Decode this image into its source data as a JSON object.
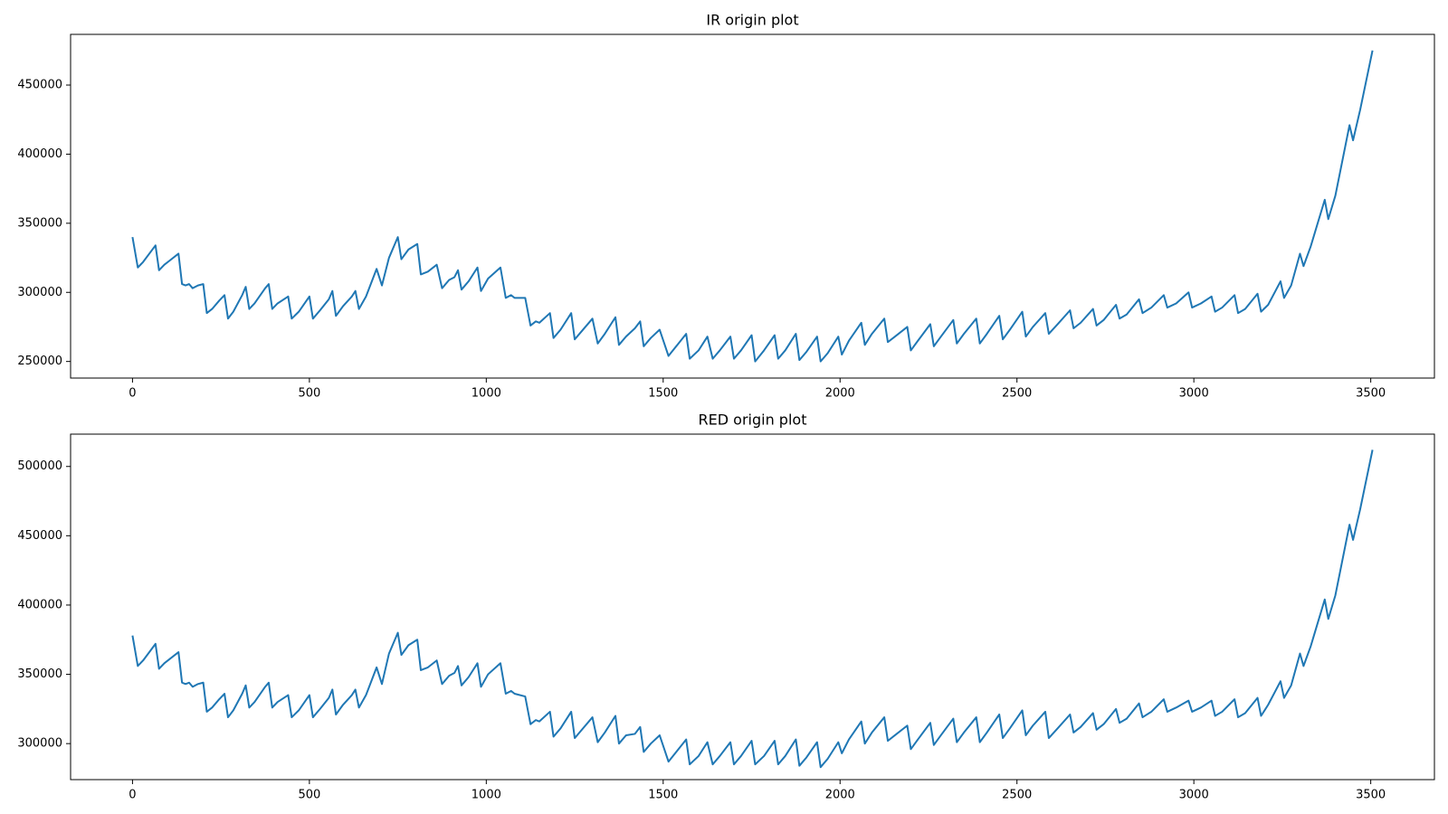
{
  "chart_data": [
    {
      "type": "line",
      "title": "IR origin plot",
      "color": "#1f77b4",
      "x": [
        0,
        15,
        30,
        65,
        75,
        90,
        105,
        130,
        140,
        150,
        160,
        170,
        185,
        200,
        210,
        225,
        245,
        260,
        270,
        285,
        310,
        320,
        330,
        345,
        375,
        385,
        395,
        410,
        440,
        450,
        470,
        500,
        510,
        530,
        555,
        565,
        575,
        595,
        620,
        630,
        640,
        660,
        690,
        705,
        725,
        750,
        760,
        780,
        805,
        815,
        835,
        860,
        875,
        895,
        910,
        920,
        930,
        950,
        975,
        985,
        1005,
        1040,
        1055,
        1070,
        1080,
        1110,
        1125,
        1140,
        1150,
        1180,
        1190,
        1210,
        1240,
        1250,
        1270,
        1300,
        1315,
        1335,
        1365,
        1375,
        1395,
        1420,
        1435,
        1445,
        1465,
        1490,
        1515,
        1540,
        1565,
        1575,
        1600,
        1625,
        1640,
        1660,
        1690,
        1700,
        1720,
        1750,
        1760,
        1785,
        1815,
        1825,
        1845,
        1875,
        1885,
        1905,
        1935,
        1945,
        1965,
        1995,
        2005,
        2025,
        2060,
        2070,
        2090,
        2125,
        2135,
        2155,
        2190,
        2200,
        2220,
        2255,
        2265,
        2285,
        2320,
        2330,
        2350,
        2385,
        2395,
        2415,
        2450,
        2460,
        2480,
        2515,
        2525,
        2545,
        2580,
        2590,
        2615,
        2650,
        2660,
        2680,
        2715,
        2725,
        2745,
        2780,
        2790,
        2810,
        2845,
        2855,
        2880,
        2915,
        2925,
        2950,
        2985,
        2995,
        3020,
        3050,
        3060,
        3080,
        3115,
        3125,
        3145,
        3180,
        3190,
        3210,
        3245,
        3255,
        3275,
        3300,
        3310,
        3330,
        3370,
        3380,
        3400,
        3440,
        3450,
        3470,
        3505
      ],
      "values": [
        340000,
        318000,
        322000,
        334000,
        316000,
        320000,
        323000,
        328000,
        306000,
        305000,
        306000,
        303000,
        305000,
        306000,
        285000,
        288000,
        294000,
        298000,
        281000,
        286000,
        298000,
        304000,
        288000,
        292000,
        303000,
        306000,
        288000,
        292000,
        297000,
        281000,
        286000,
        297000,
        281000,
        287000,
        295000,
        301000,
        283000,
        290000,
        297000,
        301000,
        288000,
        297000,
        317000,
        305000,
        325000,
        340000,
        324000,
        331000,
        335000,
        313000,
        315000,
        320000,
        303000,
        309000,
        311000,
        316000,
        302000,
        308000,
        318000,
        301000,
        310000,
        318000,
        296000,
        298000,
        296000,
        296000,
        276000,
        279000,
        278000,
        285000,
        267000,
        273000,
        285000,
        266000,
        272000,
        281000,
        263000,
        270000,
        282000,
        262000,
        268000,
        274000,
        279000,
        261000,
        267000,
        273000,
        254000,
        262000,
        270000,
        252000,
        258000,
        268000,
        252000,
        258000,
        268000,
        252000,
        258000,
        269000,
        250000,
        258000,
        269000,
        252000,
        258000,
        270000,
        251000,
        257000,
        268000,
        250000,
        256000,
        268000,
        255000,
        265000,
        278000,
        262000,
        270000,
        281000,
        264000,
        268000,
        275000,
        258000,
        265000,
        277000,
        261000,
        268000,
        280000,
        263000,
        270000,
        281000,
        263000,
        270000,
        283000,
        266000,
        273000,
        286000,
        268000,
        275000,
        285000,
        270000,
        277000,
        287000,
        274000,
        278000,
        288000,
        276000,
        280000,
        291000,
        281000,
        284000,
        295000,
        285000,
        289000,
        298000,
        289000,
        292000,
        300000,
        289000,
        292000,
        297000,
        286000,
        289000,
        298000,
        285000,
        288000,
        299000,
        286000,
        291000,
        308000,
        296000,
        305000,
        328000,
        319000,
        333000,
        367000,
        353000,
        370000,
        421000,
        410000,
        432000,
        475000
      ],
      "xlim": [
        -175,
        3680
      ],
      "ylim": [
        238000,
        486667
      ],
      "xticks": [
        0,
        500,
        1000,
        1500,
        2000,
        2500,
        3000,
        3500
      ],
      "yticks": [
        250000,
        300000,
        350000,
        400000,
        450000
      ]
    },
    {
      "type": "line",
      "title": "RED origin plot",
      "color": "#1f77b4",
      "x": [
        0,
        15,
        30,
        65,
        75,
        90,
        105,
        130,
        140,
        150,
        160,
        170,
        185,
        200,
        210,
        225,
        245,
        260,
        270,
        285,
        310,
        320,
        330,
        345,
        375,
        385,
        395,
        410,
        440,
        450,
        470,
        500,
        510,
        530,
        555,
        565,
        575,
        595,
        620,
        630,
        640,
        660,
        690,
        705,
        725,
        750,
        760,
        780,
        805,
        815,
        835,
        860,
        875,
        895,
        910,
        920,
        930,
        950,
        975,
        985,
        1005,
        1040,
        1055,
        1070,
        1080,
        1110,
        1125,
        1140,
        1150,
        1180,
        1190,
        1210,
        1240,
        1250,
        1270,
        1300,
        1315,
        1335,
        1365,
        1375,
        1395,
        1420,
        1435,
        1445,
        1465,
        1490,
        1515,
        1540,
        1565,
        1575,
        1600,
        1625,
        1640,
        1660,
        1690,
        1700,
        1720,
        1750,
        1760,
        1785,
        1815,
        1825,
        1845,
        1875,
        1885,
        1905,
        1935,
        1945,
        1965,
        1995,
        2005,
        2025,
        2060,
        2070,
        2090,
        2125,
        2135,
        2155,
        2190,
        2200,
        2220,
        2255,
        2265,
        2285,
        2320,
        2330,
        2350,
        2385,
        2395,
        2415,
        2450,
        2460,
        2480,
        2515,
        2525,
        2545,
        2580,
        2590,
        2615,
        2650,
        2660,
        2680,
        2715,
        2725,
        2745,
        2780,
        2790,
        2810,
        2845,
        2855,
        2880,
        2915,
        2925,
        2950,
        2985,
        2995,
        3020,
        3050,
        3060,
        3080,
        3115,
        3125,
        3145,
        3180,
        3190,
        3210,
        3245,
        3255,
        3275,
        3300,
        3310,
        3330,
        3370,
        3380,
        3400,
        3440,
        3450,
        3470,
        3505
      ],
      "values": [
        378000,
        356000,
        360000,
        372000,
        354000,
        358000,
        361000,
        366000,
        344000,
        343000,
        344000,
        341000,
        343000,
        344000,
        323000,
        326000,
        332000,
        336000,
        319000,
        324000,
        336000,
        342000,
        326000,
        330000,
        341000,
        344000,
        326000,
        330000,
        335000,
        319000,
        324000,
        335000,
        319000,
        325000,
        333000,
        339000,
        321000,
        328000,
        335000,
        339000,
        326000,
        335000,
        355000,
        343000,
        365000,
        380000,
        364000,
        371000,
        375000,
        353000,
        355000,
        360000,
        343000,
        349000,
        351000,
        356000,
        342000,
        348000,
        358000,
        341000,
        350000,
        358000,
        336000,
        338000,
        336000,
        334000,
        314000,
        317000,
        316000,
        323000,
        305000,
        311000,
        323000,
        304000,
        310000,
        319000,
        301000,
        308000,
        320000,
        300000,
        306000,
        307000,
        312000,
        294000,
        300000,
        306000,
        287000,
        295000,
        303000,
        285000,
        291000,
        301000,
        285000,
        291000,
        301000,
        285000,
        291000,
        302000,
        285000,
        291000,
        302000,
        285000,
        291000,
        303000,
        284000,
        290000,
        301000,
        283000,
        289000,
        301000,
        293000,
        303000,
        316000,
        300000,
        308000,
        319000,
        302000,
        306000,
        313000,
        296000,
        303000,
        315000,
        299000,
        306000,
        318000,
        301000,
        308000,
        319000,
        301000,
        308000,
        321000,
        304000,
        311000,
        324000,
        306000,
        313000,
        323000,
        304000,
        311000,
        321000,
        308000,
        312000,
        322000,
        310000,
        314000,
        325000,
        315000,
        318000,
        329000,
        319000,
        323000,
        332000,
        323000,
        326000,
        331000,
        323000,
        326000,
        331000,
        320000,
        323000,
        332000,
        319000,
        322000,
        333000,
        320000,
        328000,
        345000,
        333000,
        342000,
        365000,
        356000,
        370000,
        404000,
        390000,
        407000,
        458000,
        447000,
        469000,
        512000
      ],
      "xlim": [
        -175,
        3680
      ],
      "ylim": [
        274000,
        523333
      ],
      "xticks": [
        0,
        500,
        1000,
        1500,
        2000,
        2500,
        3000,
        3500
      ],
      "yticks": [
        300000,
        350000,
        400000,
        450000,
        500000
      ]
    }
  ]
}
